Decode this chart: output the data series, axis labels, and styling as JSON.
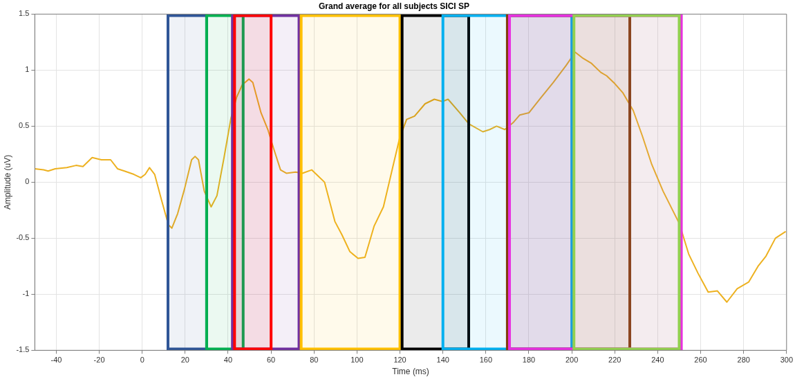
{
  "chart_data": {
    "type": "line",
    "title": "Grand average for all subjects SICI SP",
    "xlabel": "Time (ms)",
    "ylabel": "Amplitude (uV)",
    "series": [
      {
        "color": "#edb120",
        "x": [
          -50,
          -45.9,
          -43.8,
          -40.5,
          -35.1,
          -30.8,
          -27.6,
          -23.3,
          -19,
          -14.7,
          -11.5,
          -8.3,
          -3.9,
          -0.7,
          1.4,
          3.4,
          5.8,
          9,
          12.2,
          13.8,
          16.5,
          19.7,
          23,
          24.6,
          26.2,
          28.9,
          32.1,
          34.8,
          38.1,
          41.3,
          44,
          46.6,
          49.7,
          51.5,
          55.3,
          58.5,
          61.2,
          64.4,
          67.1,
          71.4,
          74.6,
          78.9,
          84.9,
          89.7,
          93,
          96.7,
          100.5,
          103.7,
          108,
          112.3,
          116.6,
          119.8,
          123.1,
          126.8,
          131.7,
          136,
          139.8,
          142.4,
          147.8,
          152.1,
          158.6,
          161.8,
          165,
          168.8,
          172.6,
          175.8,
          180.1,
          185,
          191.4,
          197.3,
          201.6,
          204.9,
          209.2,
          213.5,
          216.2,
          220,
          223.7,
          228.6,
          232.9,
          237.2,
          242.5,
          250.1,
          254.4,
          258.7,
          263.5,
          267.8,
          272.2,
          277,
          282.4,
          286.7,
          290.4,
          294.8,
          299.6
        ],
        "values": [
          0.12,
          0.11,
          0.1,
          0.12,
          0.13,
          0.15,
          0.14,
          0.22,
          0.2,
          0.2,
          0.12,
          0.1,
          0.07,
          0.04,
          0.07,
          0.13,
          0.07,
          -0.16,
          -0.38,
          -0.41,
          -0.28,
          -0.06,
          0.2,
          0.23,
          0.2,
          -0.08,
          -0.22,
          -0.12,
          0.22,
          0.57,
          0.76,
          0.87,
          0.92,
          0.89,
          0.62,
          0.47,
          0.3,
          0.11,
          0.08,
          0.09,
          0.08,
          0.11,
          0,
          -0.35,
          -0.47,
          -0.62,
          -0.68,
          -0.67,
          -0.39,
          -0.22,
          0.13,
          0.39,
          0.56,
          0.59,
          0.7,
          0.74,
          0.72,
          0.74,
          0.62,
          0.52,
          0.45,
          0.47,
          0.5,
          0.47,
          0.53,
          0.6,
          0.62,
          0.74,
          0.89,
          1.04,
          1.16,
          1.11,
          1.06,
          0.98,
          0.95,
          0.88,
          0.8,
          0.64,
          0.41,
          0.16,
          -0.08,
          -0.37,
          -0.64,
          -0.81,
          -0.98,
          -0.97,
          -1.07,
          -0.95,
          -0.89,
          -0.75,
          -0.66,
          -0.5,
          -0.44
        ]
      }
    ],
    "xlim": [
      -50,
      300
    ],
    "xticks": [
      -40,
      -20,
      0,
      20,
      40,
      60,
      80,
      100,
      120,
      140,
      160,
      180,
      200,
      220,
      240,
      260,
      280,
      300
    ],
    "ylim": [
      -1.5,
      1.5
    ],
    "yticks": [
      -1.5,
      -1,
      -0.5,
      0,
      0.5,
      1,
      1.5
    ],
    "grid": true,
    "marker": "none",
    "line_style": "solid",
    "bands": [
      {
        "axis": "x",
        "from": 12,
        "to": 30,
        "color": "#2f5597"
      },
      {
        "axis": "x",
        "from": 30,
        "to": 47,
        "color": "#00b050"
      },
      {
        "axis": "x",
        "from": 42,
        "to": 73,
        "color": "#7030a0"
      },
      {
        "axis": "x",
        "from": 43,
        "to": 60,
        "color": "#ff0000"
      },
      {
        "axis": "x",
        "from": 74,
        "to": 120,
        "color": "#ffc000"
      },
      {
        "axis": "x",
        "from": 121,
        "to": 152,
        "color": "#000000"
      },
      {
        "axis": "x",
        "from": 140,
        "to": 200,
        "color": "#00b0f0"
      },
      {
        "axis": "x",
        "from": 170,
        "to": 227,
        "color": "#843c0c"
      },
      {
        "axis": "x",
        "from": 171,
        "to": 251,
        "color": "#e830e0"
      },
      {
        "axis": "x",
        "from": 201,
        "to": 250,
        "color": "#92d050"
      }
    ]
  }
}
